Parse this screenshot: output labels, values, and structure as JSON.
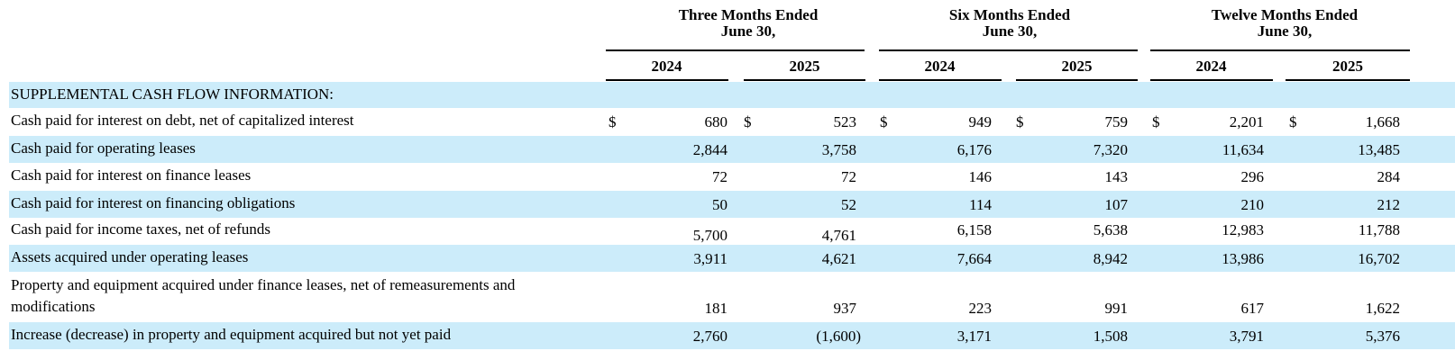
{
  "column_groups": [
    {
      "line1": "Three Months Ended",
      "line2": "June 30,"
    },
    {
      "line1": "Six Months Ended",
      "line2": "June 30,"
    },
    {
      "line1": "Twelve Months Ended",
      "line2": "June 30,"
    }
  ],
  "years": [
    "2024",
    "2025",
    "2024",
    "2025",
    "2024",
    "2025"
  ],
  "section_title": "SUPPLEMENTAL CASH FLOW INFORMATION:",
  "currency_symbol": "$",
  "row_shading": "#ccecfa",
  "rows": [
    {
      "label": "Cash paid for interest on debt, net of capitalized interest",
      "values": [
        "680",
        "523",
        "949",
        "759",
        "2,201",
        "1,668"
      ],
      "dollar": true
    },
    {
      "label": "Cash paid for operating leases",
      "values": [
        "2,844",
        "3,758",
        "6,176",
        "7,320",
        "11,634",
        "13,485"
      ]
    },
    {
      "label": "Cash paid for interest on finance leases",
      "values": [
        "72",
        "72",
        "146",
        "143",
        "296",
        "284"
      ]
    },
    {
      "label": "Cash paid for interest on financing obligations",
      "values": [
        "50",
        "52",
        "114",
        "107",
        "210",
        "212"
      ]
    },
    {
      "label": "Cash paid for income taxes, net of refunds",
      "values": [
        "5,700",
        "4,761",
        "6,158",
        "5,638",
        "12,983",
        "11,788"
      ]
    },
    {
      "label": "Assets acquired under operating leases",
      "values": [
        "3,911",
        "4,621",
        "7,664",
        "8,942",
        "13,986",
        "16,702"
      ]
    },
    {
      "label_line1": "Property and equipment acquired under finance leases, net of remeasurements and",
      "label_line2": "modifications",
      "values": [
        "181",
        "937",
        "223",
        "991",
        "617",
        "1,622"
      ]
    },
    {
      "label": "Increase (decrease) in property and equipment acquired but not yet paid",
      "values": [
        "2,760",
        "(1,600)",
        "3,171",
        "1,508",
        "3,791",
        "5,376"
      ]
    }
  ]
}
